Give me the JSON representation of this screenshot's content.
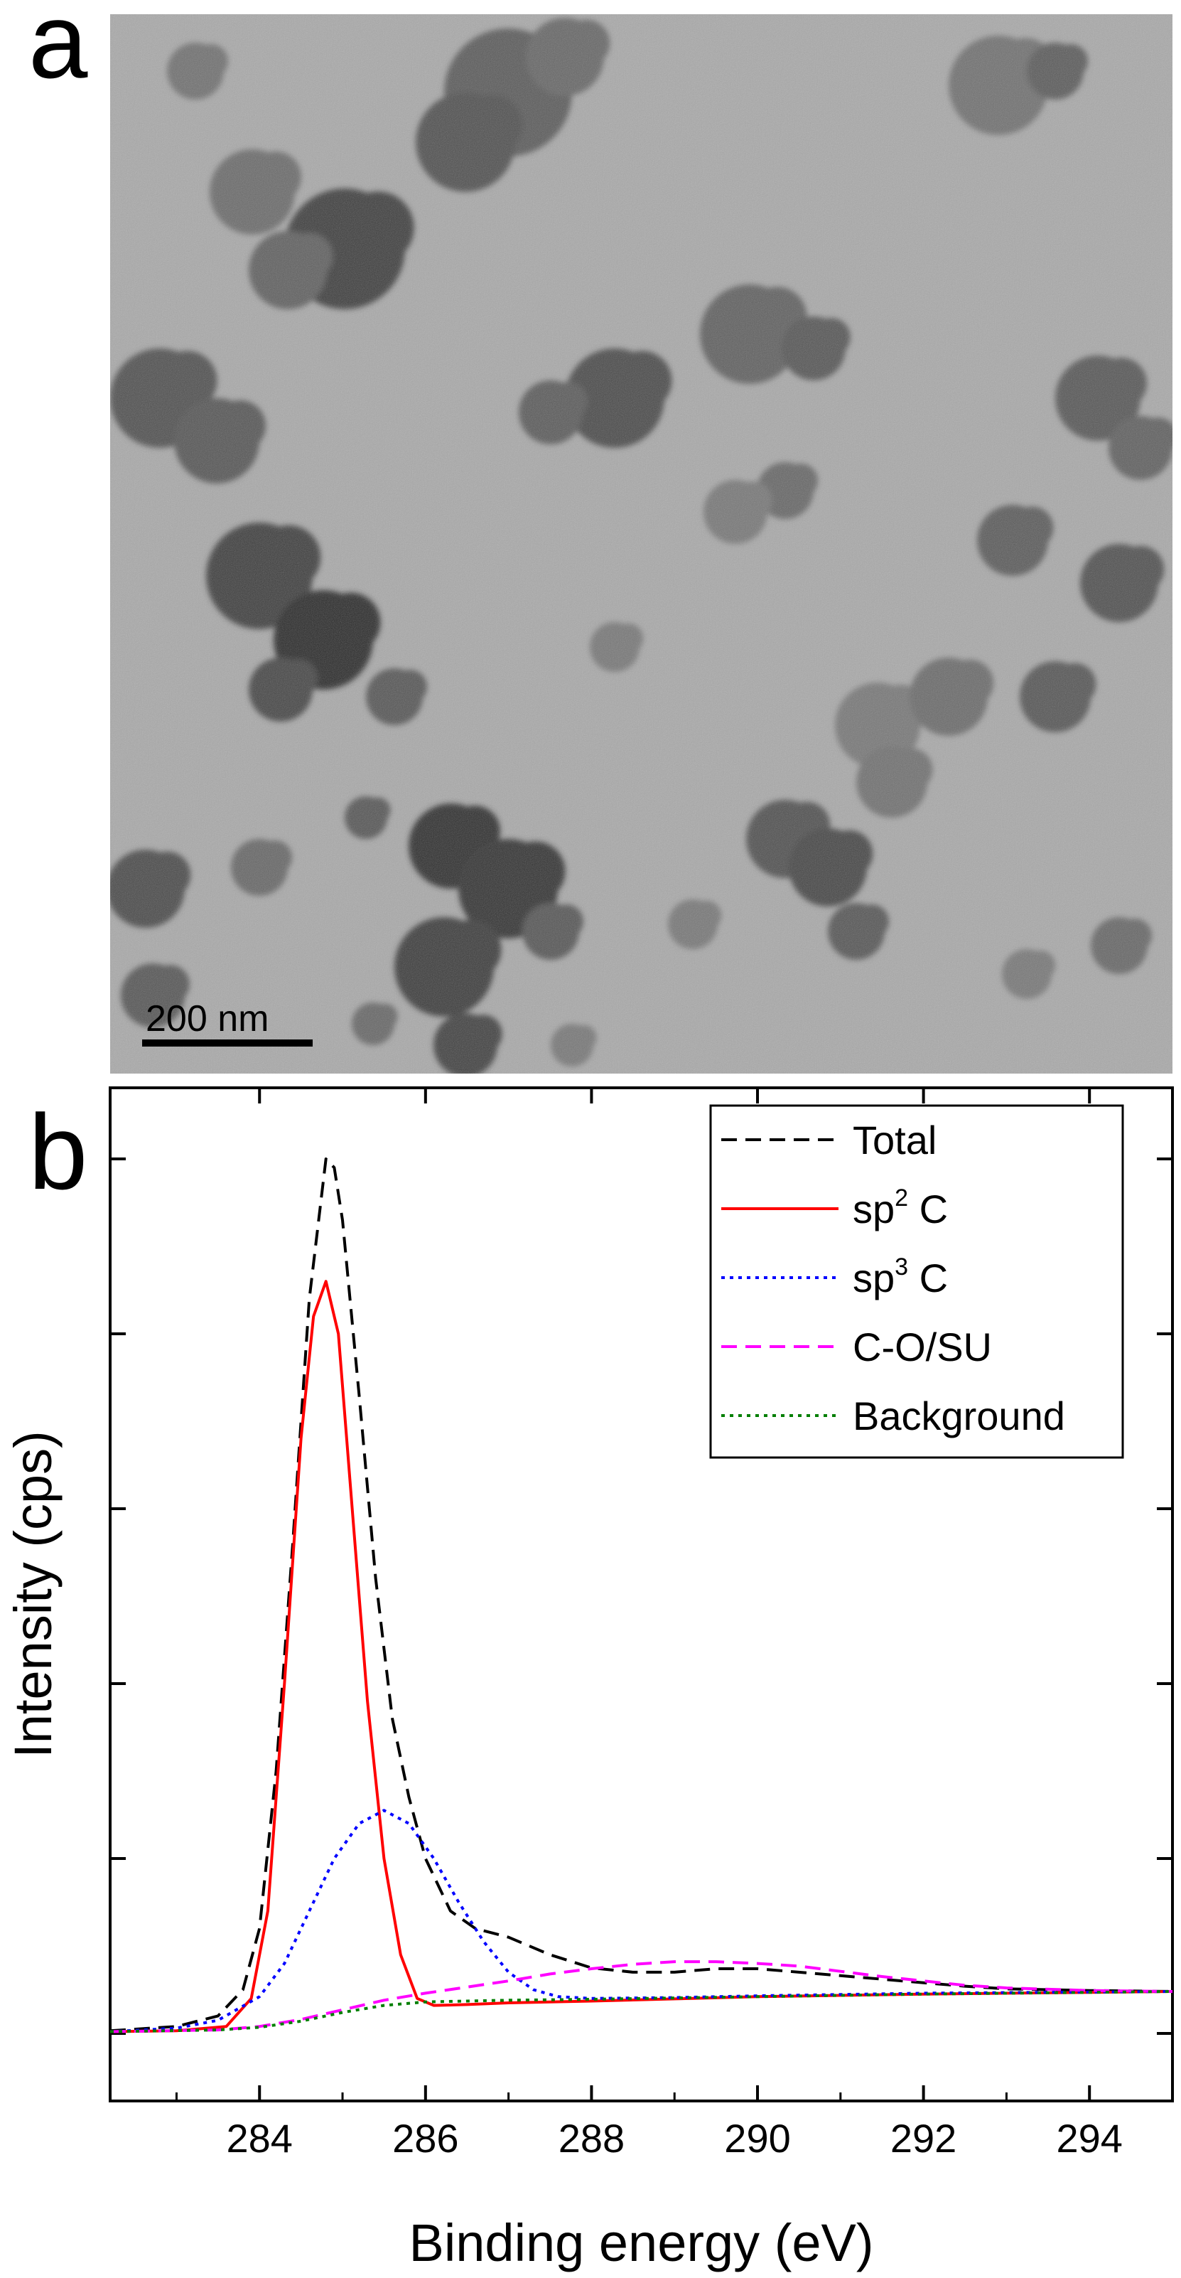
{
  "figure": {
    "panel_a_label": "a",
    "panel_b_label": "b",
    "scale_bar_label": "200 nm"
  },
  "chart_data": {
    "type": "line",
    "title": "",
    "xlabel": "Binding energy (eV)",
    "ylabel": "Intensity (cps)",
    "xlim": [
      282.2,
      295.0
    ],
    "ylim": [
      0,
      1.0
    ],
    "x_ticks": [
      284,
      286,
      288,
      290,
      292,
      294
    ],
    "x_tick_labels": [
      "284",
      "286",
      "288",
      "290",
      "292",
      "294"
    ],
    "y_ticks": [
      0.0,
      0.2,
      0.4,
      0.6,
      0.8,
      1.0
    ],
    "y_tick_labels_shown": false,
    "grid": false,
    "legend_position": "top-right",
    "series": [
      {
        "name": "Total",
        "color": "#000000",
        "dash": "dashed",
        "x": [
          282.2,
          283.0,
          283.5,
          283.8,
          284.0,
          284.2,
          284.4,
          284.6,
          284.8,
          284.9,
          285.0,
          285.2,
          285.4,
          285.6,
          285.8,
          286.0,
          286.3,
          286.6,
          287.0,
          287.5,
          288.0,
          288.5,
          289.0,
          289.5,
          290.0,
          290.5,
          291.0,
          291.5,
          292.0,
          292.5,
          293.0,
          293.5,
          294.0,
          295.0
        ],
        "y": [
          0.003,
          0.008,
          0.02,
          0.05,
          0.12,
          0.3,
          0.56,
          0.84,
          1.0,
          0.99,
          0.93,
          0.73,
          0.52,
          0.36,
          0.27,
          0.2,
          0.14,
          0.12,
          0.11,
          0.09,
          0.075,
          0.07,
          0.07,
          0.074,
          0.074,
          0.07,
          0.066,
          0.062,
          0.058,
          0.054,
          0.051,
          0.05,
          0.049,
          0.048
        ]
      },
      {
        "name": "sp<sup>2</sup> C",
        "color": "#ff0000",
        "dash": "solid",
        "x": [
          282.2,
          283.0,
          283.6,
          283.9,
          284.1,
          284.3,
          284.5,
          284.65,
          284.8,
          284.95,
          285.1,
          285.3,
          285.5,
          285.7,
          285.9,
          286.1,
          286.5,
          287.0,
          288.0,
          290.0,
          292.0,
          295.0
        ],
        "y": [
          0.002,
          0.003,
          0.008,
          0.04,
          0.14,
          0.4,
          0.68,
          0.82,
          0.86,
          0.8,
          0.62,
          0.38,
          0.2,
          0.09,
          0.04,
          0.032,
          0.033,
          0.035,
          0.037,
          0.042,
          0.045,
          0.048
        ]
      },
      {
        "name": "sp<sup>3</sup> C",
        "color": "#0000ff",
        "dash": "dotted",
        "x": [
          282.2,
          283.0,
          283.5,
          284.0,
          284.3,
          284.6,
          284.9,
          285.2,
          285.5,
          285.8,
          286.1,
          286.4,
          286.7,
          287.0,
          287.3,
          287.6,
          288.0,
          289.0,
          290.0,
          292.0,
          295.0
        ],
        "y": [
          0.002,
          0.006,
          0.015,
          0.042,
          0.08,
          0.14,
          0.2,
          0.24,
          0.255,
          0.24,
          0.2,
          0.15,
          0.105,
          0.07,
          0.05,
          0.042,
          0.04,
          0.041,
          0.043,
          0.046,
          0.048
        ]
      },
      {
        "name": "C-O/SU",
        "color": "#ff00ff",
        "dash": "dashed",
        "x": [
          282.2,
          283.5,
          284.0,
          284.5,
          285.0,
          285.5,
          286.0,
          286.5,
          287.0,
          287.5,
          288.0,
          288.5,
          289.0,
          289.5,
          290.0,
          290.5,
          291.0,
          291.5,
          292.0,
          292.5,
          293.0,
          294.0,
          295.0
        ],
        "y": [
          0.002,
          0.004,
          0.008,
          0.016,
          0.027,
          0.038,
          0.046,
          0.053,
          0.06,
          0.068,
          0.074,
          0.079,
          0.082,
          0.082,
          0.08,
          0.077,
          0.071,
          0.065,
          0.06,
          0.055,
          0.052,
          0.049,
          0.048
        ]
      },
      {
        "name": "Background",
        "color": "#007f00",
        "dash": "dotted",
        "x": [
          282.2,
          283.5,
          284.0,
          284.5,
          285.0,
          285.5,
          286.0,
          286.5,
          287.0,
          288.0,
          290.0,
          292.0,
          295.0
        ],
        "y": [
          0.002,
          0.004,
          0.007,
          0.014,
          0.024,
          0.032,
          0.036,
          0.037,
          0.038,
          0.039,
          0.042,
          0.045,
          0.048
        ]
      }
    ]
  }
}
